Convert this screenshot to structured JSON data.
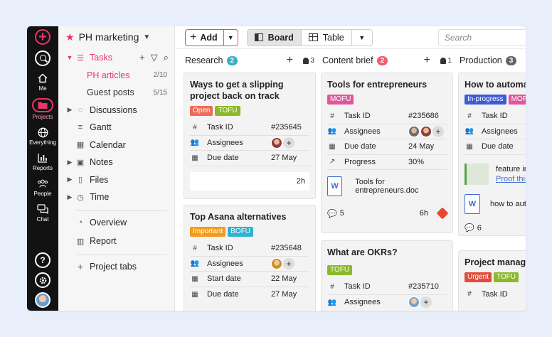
{
  "rail": {
    "items": [
      {
        "label": "Me",
        "icon": "home-icon"
      },
      {
        "label": "Projects",
        "icon": "folder-icon"
      },
      {
        "label": "Everything",
        "icon": "globe-icon"
      },
      {
        "label": "Reports",
        "icon": "bar-chart-icon"
      },
      {
        "label": "People",
        "icon": "people-icon"
      },
      {
        "label": "Chat",
        "icon": "chat-icon"
      }
    ],
    "help": "?"
  },
  "sidebar": {
    "project": "PH marketing",
    "tasks_label": "Tasks",
    "subitems": [
      {
        "label": "PH articles",
        "count": "2/10"
      },
      {
        "label": "Guest posts",
        "count": "5/15"
      }
    ],
    "items": [
      {
        "label": "Discussions"
      },
      {
        "label": "Gantt"
      },
      {
        "label": "Calendar"
      },
      {
        "label": "Notes"
      },
      {
        "label": "Files"
      },
      {
        "label": "Time"
      }
    ],
    "extra": [
      {
        "label": "Overview"
      },
      {
        "label": "Report"
      }
    ],
    "project_tabs": "Project tabs"
  },
  "toolbar": {
    "add_label": "Add",
    "board_label": "Board",
    "table_label": "Table",
    "search_placeholder": "Search"
  },
  "columns": [
    {
      "name": "Research",
      "count": "2",
      "assignees": "3",
      "badge_color": "#35b0c4",
      "cards": [
        {
          "title": "Ways to get a slipping project back on track",
          "tags": [
            {
              "label": "Open",
              "color": "#ef6b55"
            },
            {
              "label": "TOFU",
              "color": "#8cb82a"
            }
          ],
          "fields": [
            {
              "label": "Task ID",
              "value": "#235645"
            },
            {
              "label": "Assignees",
              "value": ""
            },
            {
              "label": "Due date",
              "value": "27 May"
            }
          ],
          "time": "2h"
        },
        {
          "title": "Top Asana alternatives",
          "tags": [
            {
              "label": "Important",
              "color": "#f29b1d"
            },
            {
              "label": "BOFU",
              "color": "#2fb2d0"
            }
          ],
          "fields": [
            {
              "label": "Task ID",
              "value": "#235648"
            },
            {
              "label": "Assignees",
              "value": ""
            },
            {
              "label": "Start date",
              "value": "22 May"
            },
            {
              "label": "Due date",
              "value": "27 May"
            }
          ]
        }
      ]
    },
    {
      "name": "Content brief",
      "count": "2",
      "assignees": "1",
      "badge_color": "#ef5f6d",
      "cards": [
        {
          "title": "Tools for entrepreneurs",
          "tags": [
            {
              "label": "MOFU",
              "color": "#e1569b"
            }
          ],
          "fields": [
            {
              "label": "Task ID",
              "value": "#235686"
            },
            {
              "label": "Assignees",
              "value": ""
            },
            {
              "label": "Due date",
              "value": "24 May"
            },
            {
              "label": "Progress",
              "value": "30%"
            }
          ],
          "file": "Tools for entrepreneurs.doc",
          "comments": "5",
          "time": "6h"
        },
        {
          "title": "What are OKRs?",
          "tags": [
            {
              "label": "TOFU",
              "color": "#8cb82a"
            }
          ],
          "fields": [
            {
              "label": "Task ID",
              "value": "#235710"
            },
            {
              "label": "Assignees",
              "value": ""
            }
          ]
        }
      ]
    },
    {
      "name": "Production",
      "count": "3",
      "badge_color": "#666666",
      "cards": [
        {
          "title": "How to automate",
          "tags": [
            {
              "label": "In-progress",
              "color": "#3d5bd4"
            },
            {
              "label": "MOFU",
              "color": "#e1569b"
            }
          ],
          "fields": [
            {
              "label": "Task ID",
              "value": ""
            },
            {
              "label": "Assignees",
              "value": ""
            },
            {
              "label": "Due date",
              "value": ""
            }
          ],
          "file1": "feature im",
          "file1_link": "Proof this",
          "file2": "how to aut",
          "comments": "6"
        },
        {
          "title": "Project manager",
          "tags": [
            {
              "label": "Urgent",
              "color": "#e04b3a"
            },
            {
              "label": "TOFU",
              "color": "#8cb82a"
            }
          ],
          "fields": [
            {
              "label": "Task ID",
              "value": ""
            }
          ]
        }
      ]
    }
  ]
}
